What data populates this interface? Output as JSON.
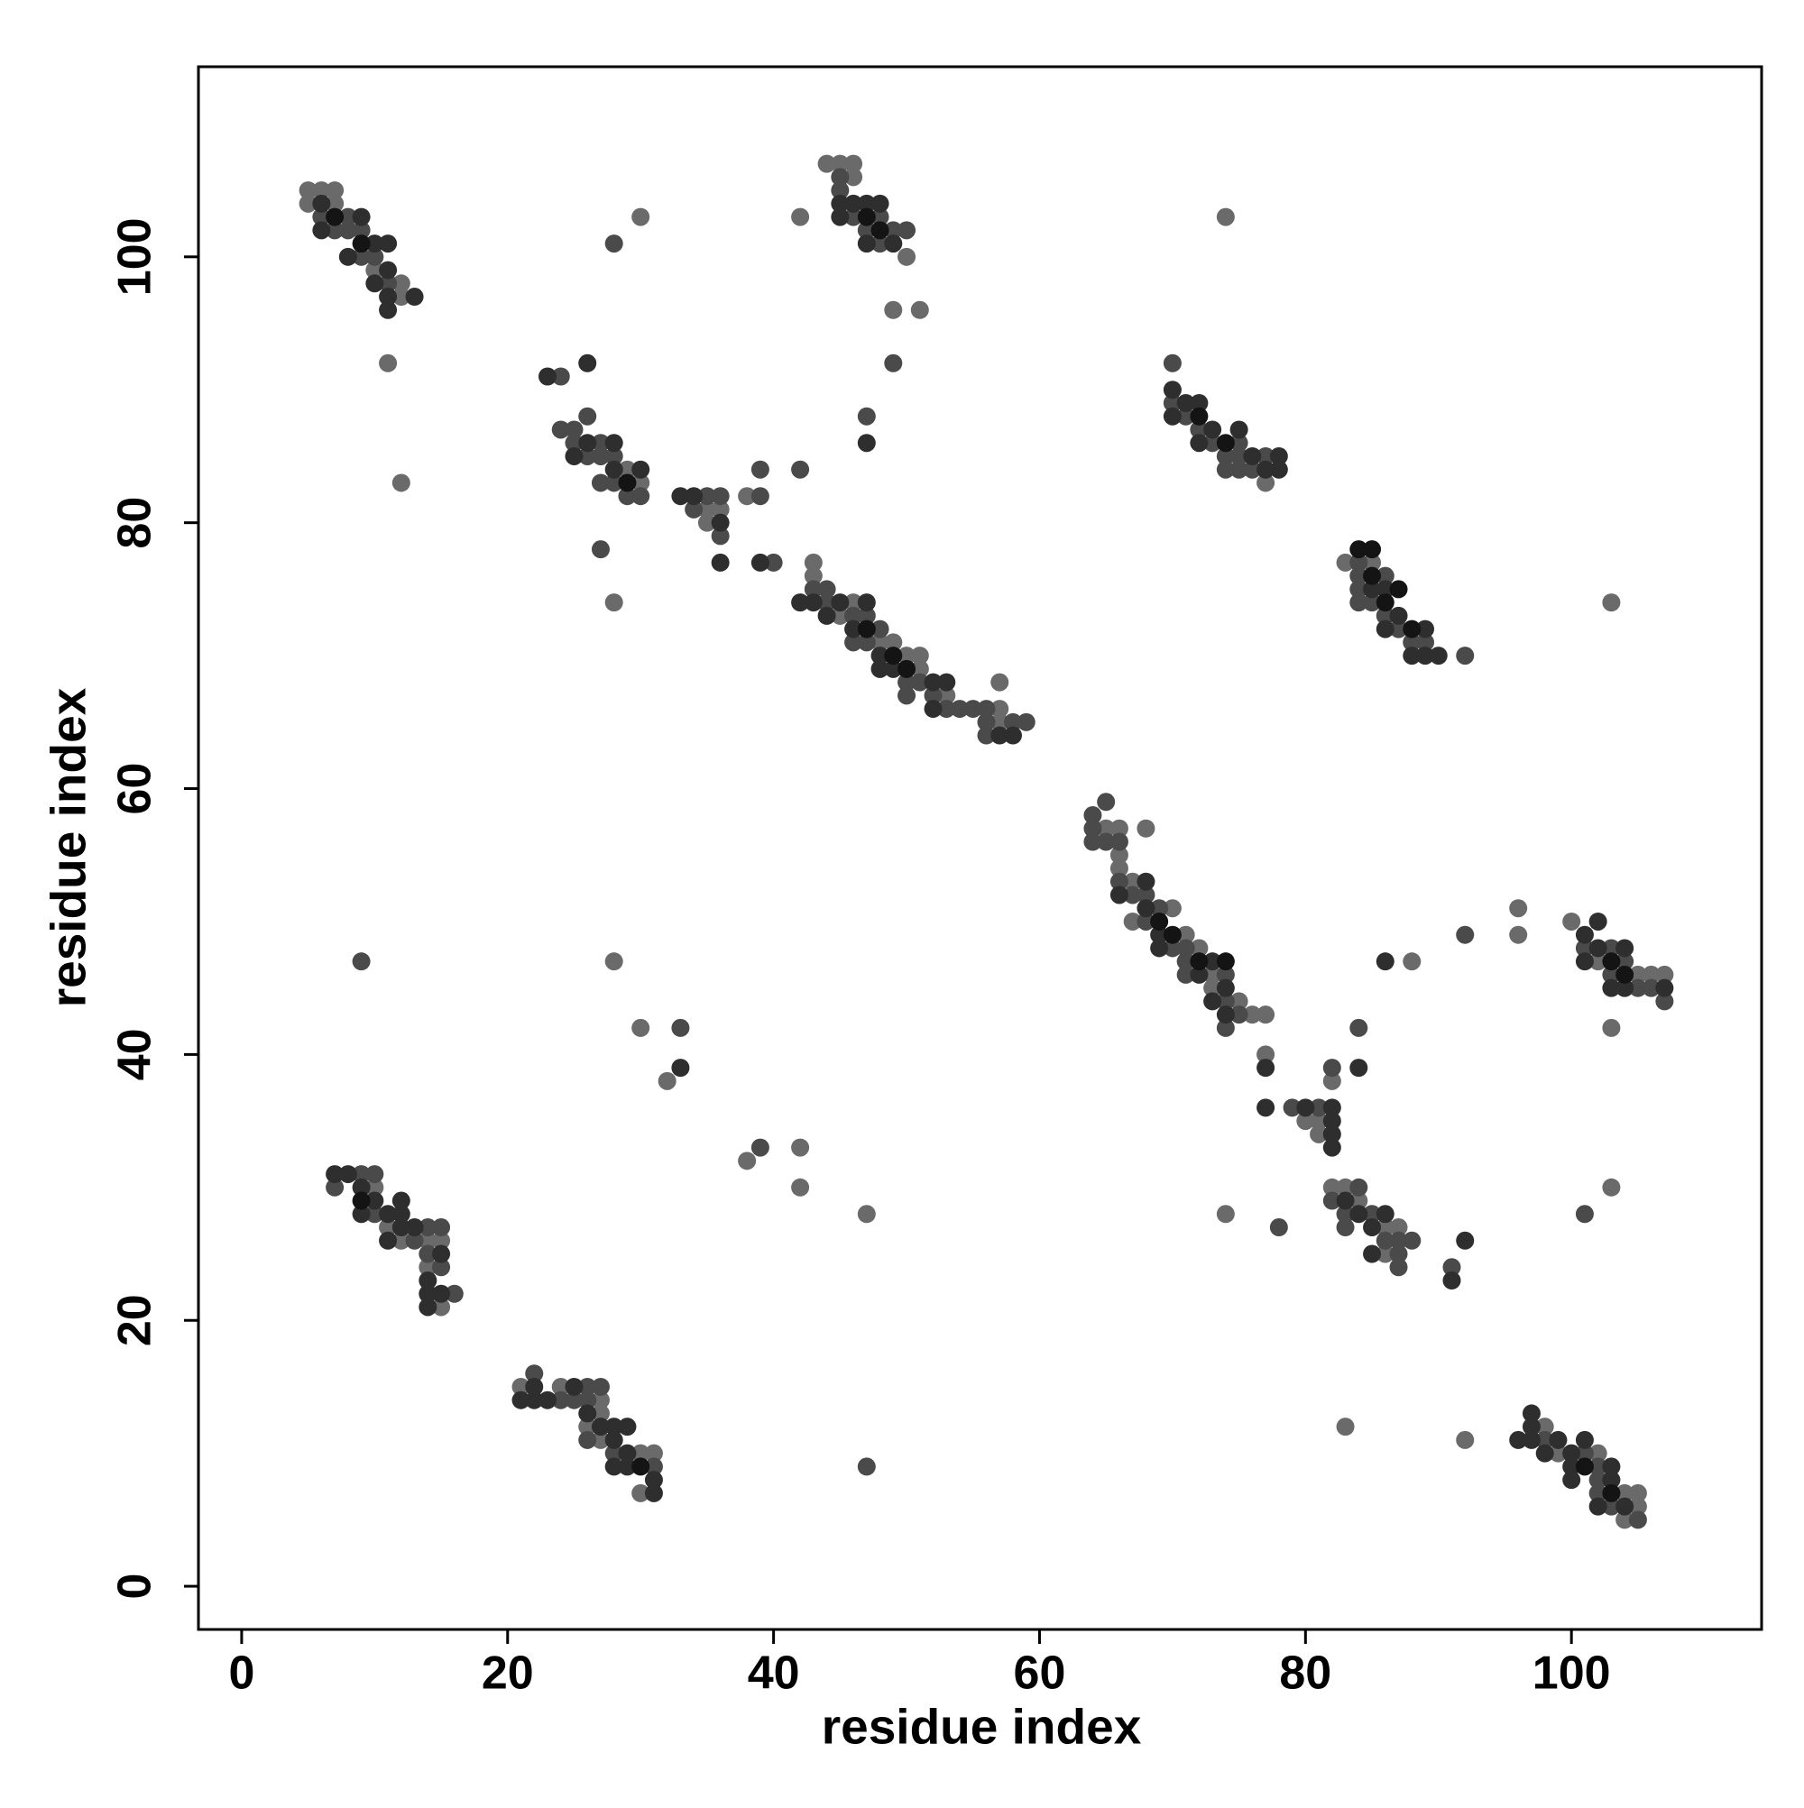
{
  "chart_data": {
    "type": "scatter",
    "xlabel": "residue index",
    "ylabel": "residue index",
    "xlim": [
      -3.25,
      114.3
    ],
    "ylim": [
      -3.25,
      114.3
    ],
    "xticks": [
      0,
      20,
      40,
      60,
      80,
      100
    ],
    "yticks": [
      0,
      20,
      40,
      60,
      80,
      100
    ],
    "series": [
      {
        "color": "#6a6a6a",
        "x": [
          5,
          6,
          7,
          5,
          7,
          10,
          12,
          12,
          11,
          12,
          29,
          30,
          28,
          30,
          35,
          36,
          35,
          38,
          42,
          43,
          43,
          46,
          45,
          48,
          49,
          50,
          51,
          51,
          53,
          57,
          57,
          57,
          44,
          45,
          46,
          46,
          50,
          49,
          51,
          77,
          74,
          83,
          85,
          103,
          65,
          66,
          66,
          66,
          67,
          70,
          67,
          71,
          72,
          73,
          73,
          75,
          76,
          77,
          68,
          77,
          80,
          81,
          81,
          82,
          82,
          83,
          84,
          86,
          87,
          86,
          74,
          96,
          96,
          100,
          102,
          105,
          106,
          107,
          103,
          88,
          10,
          11,
          12,
          14,
          15,
          14,
          15,
          21,
          24,
          27,
          27,
          26,
          27,
          30,
          31,
          30,
          98,
          99,
          102,
          104,
          105,
          105,
          104,
          92,
          83,
          28,
          30,
          32,
          38,
          42,
          42,
          47,
          103
        ],
        "values": [
          105,
          105,
          105,
          104,
          104,
          99,
          98,
          97,
          92,
          83,
          84,
          83,
          74,
          103,
          81,
          81,
          80,
          82,
          103,
          77,
          76,
          74,
          73,
          71,
          71,
          70,
          70,
          69,
          67,
          66,
          65,
          68,
          107,
          107,
          107,
          106,
          100,
          96,
          96,
          83,
          103,
          77,
          77,
          74,
          57,
          57,
          55,
          54,
          53,
          51,
          50,
          49,
          48,
          46,
          45,
          44,
          43,
          43,
          57,
          40,
          35,
          35,
          34,
          38,
          30,
          30,
          29,
          27,
          27,
          25,
          28,
          51,
          49,
          50,
          47,
          46,
          46,
          46,
          42,
          47,
          30,
          27,
          26,
          26,
          26,
          24,
          21,
          15,
          15,
          14,
          13,
          12,
          11,
          10,
          10,
          7,
          12,
          10,
          10,
          7,
          7,
          6,
          5,
          11,
          12,
          47,
          42,
          38,
          32,
          33,
          30,
          28,
          30
        ]
      },
      {
        "color": "#4a4a4a",
        "x": [
          6,
          8,
          7,
          8,
          9,
          9,
          10,
          11,
          24,
          24,
          25,
          26,
          25,
          27,
          26,
          27,
          28,
          27,
          28,
          29,
          30,
          27,
          28,
          35,
          36,
          34,
          36,
          39,
          39,
          40,
          42,
          43,
          44,
          44,
          46,
          47,
          48,
          46,
          47,
          50,
          51,
          50,
          52,
          53,
          54,
          55,
          56,
          56,
          58,
          59,
          56,
          45,
          45,
          46,
          48,
          47,
          49,
          50,
          48,
          49,
          47,
          70,
          70,
          71,
          72,
          73,
          75,
          74,
          75,
          77,
          74,
          75,
          76,
          84,
          84,
          86,
          84,
          84,
          85,
          86,
          87,
          88,
          89,
          92,
          64,
          65,
          64,
          64,
          65,
          66,
          66,
          67,
          68,
          69,
          68,
          70,
          71,
          71,
          71,
          74,
          74,
          75,
          74,
          79,
          81,
          82,
          84,
          84,
          82,
          83,
          85,
          83,
          86,
          87,
          88,
          87,
          87,
          91,
          78,
          92,
          101,
          103,
          104,
          103,
          105,
          106,
          107,
          9,
          10,
          7,
          10,
          14,
          15,
          13,
          14,
          15,
          16,
          9,
          22,
          26,
          27,
          24,
          25,
          26,
          26,
          28,
          31,
          47,
          98,
          101,
          102,
          102,
          102,
          103,
          105,
          33,
          39,
          101
        ],
        "values": [
          103,
          103,
          102,
          102,
          102,
          100,
          100,
          98,
          91,
          87,
          87,
          88,
          86,
          86,
          85,
          85,
          85,
          83,
          83,
          82,
          82,
          78,
          101,
          82,
          82,
          81,
          79,
          82,
          84,
          77,
          84,
          75,
          75,
          74,
          73,
          73,
          72,
          71,
          71,
          68,
          68,
          67,
          67,
          66,
          66,
          66,
          66,
          65,
          65,
          65,
          64,
          106,
          105,
          103,
          103,
          102,
          102,
          102,
          101,
          92,
          88,
          92,
          89,
          88,
          87,
          86,
          86,
          85,
          85,
          85,
          84,
          84,
          84,
          77,
          76,
          76,
          75,
          74,
          74,
          73,
          72,
          71,
          71,
          70,
          58,
          59,
          57,
          56,
          56,
          56,
          53,
          52,
          52,
          51,
          50,
          48,
          48,
          47,
          46,
          46,
          44,
          43,
          42,
          36,
          36,
          39,
          42,
          30,
          29,
          28,
          28,
          27,
          26,
          26,
          26,
          25,
          24,
          24,
          27,
          49,
          48,
          48,
          47,
          46,
          45,
          45,
          44,
          31,
          31,
          30,
          28,
          27,
          27,
          26,
          25,
          24,
          22,
          47,
          16,
          15,
          15,
          14,
          14,
          14,
          11,
          10,
          9,
          9,
          11,
          10,
          9,
          8,
          7,
          6,
          5,
          42,
          33,
          28
        ]
      },
      {
        "color": "#2e2e2e",
        "x": [
          6,
          9,
          6,
          10,
          11,
          8,
          11,
          10,
          11,
          13,
          11,
          23,
          26,
          26,
          28,
          25,
          28,
          30,
          33,
          34,
          36,
          36,
          39,
          42,
          43,
          45,
          47,
          44,
          46,
          48,
          48,
          49,
          52,
          53,
          52,
          57,
          58,
          45,
          46,
          47,
          48,
          45,
          47,
          49,
          47,
          70,
          71,
          72,
          70,
          73,
          72,
          75,
          76,
          78,
          77,
          78,
          85,
          86,
          87,
          86,
          89,
          88,
          89,
          90,
          68,
          66,
          68,
          69,
          69,
          73,
          72,
          74,
          73,
          74,
          77,
          77,
          80,
          82,
          82,
          82,
          82,
          84,
          83,
          84,
          86,
          85,
          85,
          91,
          92,
          101,
          102,
          102,
          104,
          101,
          103,
          104,
          107,
          86,
          7,
          8,
          9,
          10,
          9,
          11,
          12,
          12,
          13,
          11,
          12,
          15,
          14,
          14,
          15,
          14,
          22,
          25,
          21,
          22,
          23,
          26,
          27,
          28,
          29,
          28,
          29,
          28,
          29,
          31,
          31,
          97,
          96,
          97,
          99,
          97,
          98,
          100,
          100,
          101,
          100,
          103,
          102,
          104,
          103,
          33
        ],
        "values": [
          104,
          103,
          102,
          101,
          101,
          100,
          99,
          98,
          97,
          97,
          96,
          91,
          92,
          86,
          86,
          85,
          84,
          84,
          82,
          82,
          80,
          77,
          77,
          74,
          74,
          74,
          74,
          73,
          72,
          70,
          69,
          69,
          68,
          68,
          66,
          64,
          64,
          104,
          104,
          104,
          104,
          103,
          101,
          101,
          86,
          90,
          89,
          89,
          88,
          87,
          86,
          87,
          85,
          85,
          84,
          84,
          75,
          75,
          73,
          72,
          72,
          70,
          70,
          70,
          53,
          52,
          51,
          49,
          48,
          47,
          46,
          45,
          44,
          43,
          39,
          36,
          36,
          36,
          35,
          34,
          33,
          39,
          29,
          28,
          28,
          27,
          25,
          23,
          26,
          49,
          50,
          48,
          48,
          47,
          45,
          45,
          45,
          47,
          31,
          31,
          30,
          29,
          28,
          28,
          28,
          27,
          27,
          26,
          29,
          25,
          23,
          22,
          22,
          21,
          15,
          15,
          14,
          14,
          14,
          13,
          12,
          12,
          12,
          11,
          10,
          9,
          9,
          8,
          7,
          13,
          11,
          11,
          11,
          12,
          10,
          10,
          9,
          11,
          8,
          8,
          6,
          6,
          9,
          39
        ]
      },
      {
        "color": "#141414",
        "x": [
          7,
          9,
          29,
          47,
          48,
          47,
          49,
          50,
          72,
          74,
          84,
          85,
          85,
          87,
          86,
          88,
          69,
          70,
          72,
          74,
          103,
          104,
          9,
          30,
          101,
          103
        ],
        "values": [
          103,
          101,
          83,
          103,
          102,
          72,
          70,
          69,
          88,
          86,
          78,
          78,
          76,
          75,
          74,
          72,
          50,
          49,
          47,
          47,
          47,
          46,
          29,
          9,
          9,
          7
        ]
      }
    ]
  }
}
